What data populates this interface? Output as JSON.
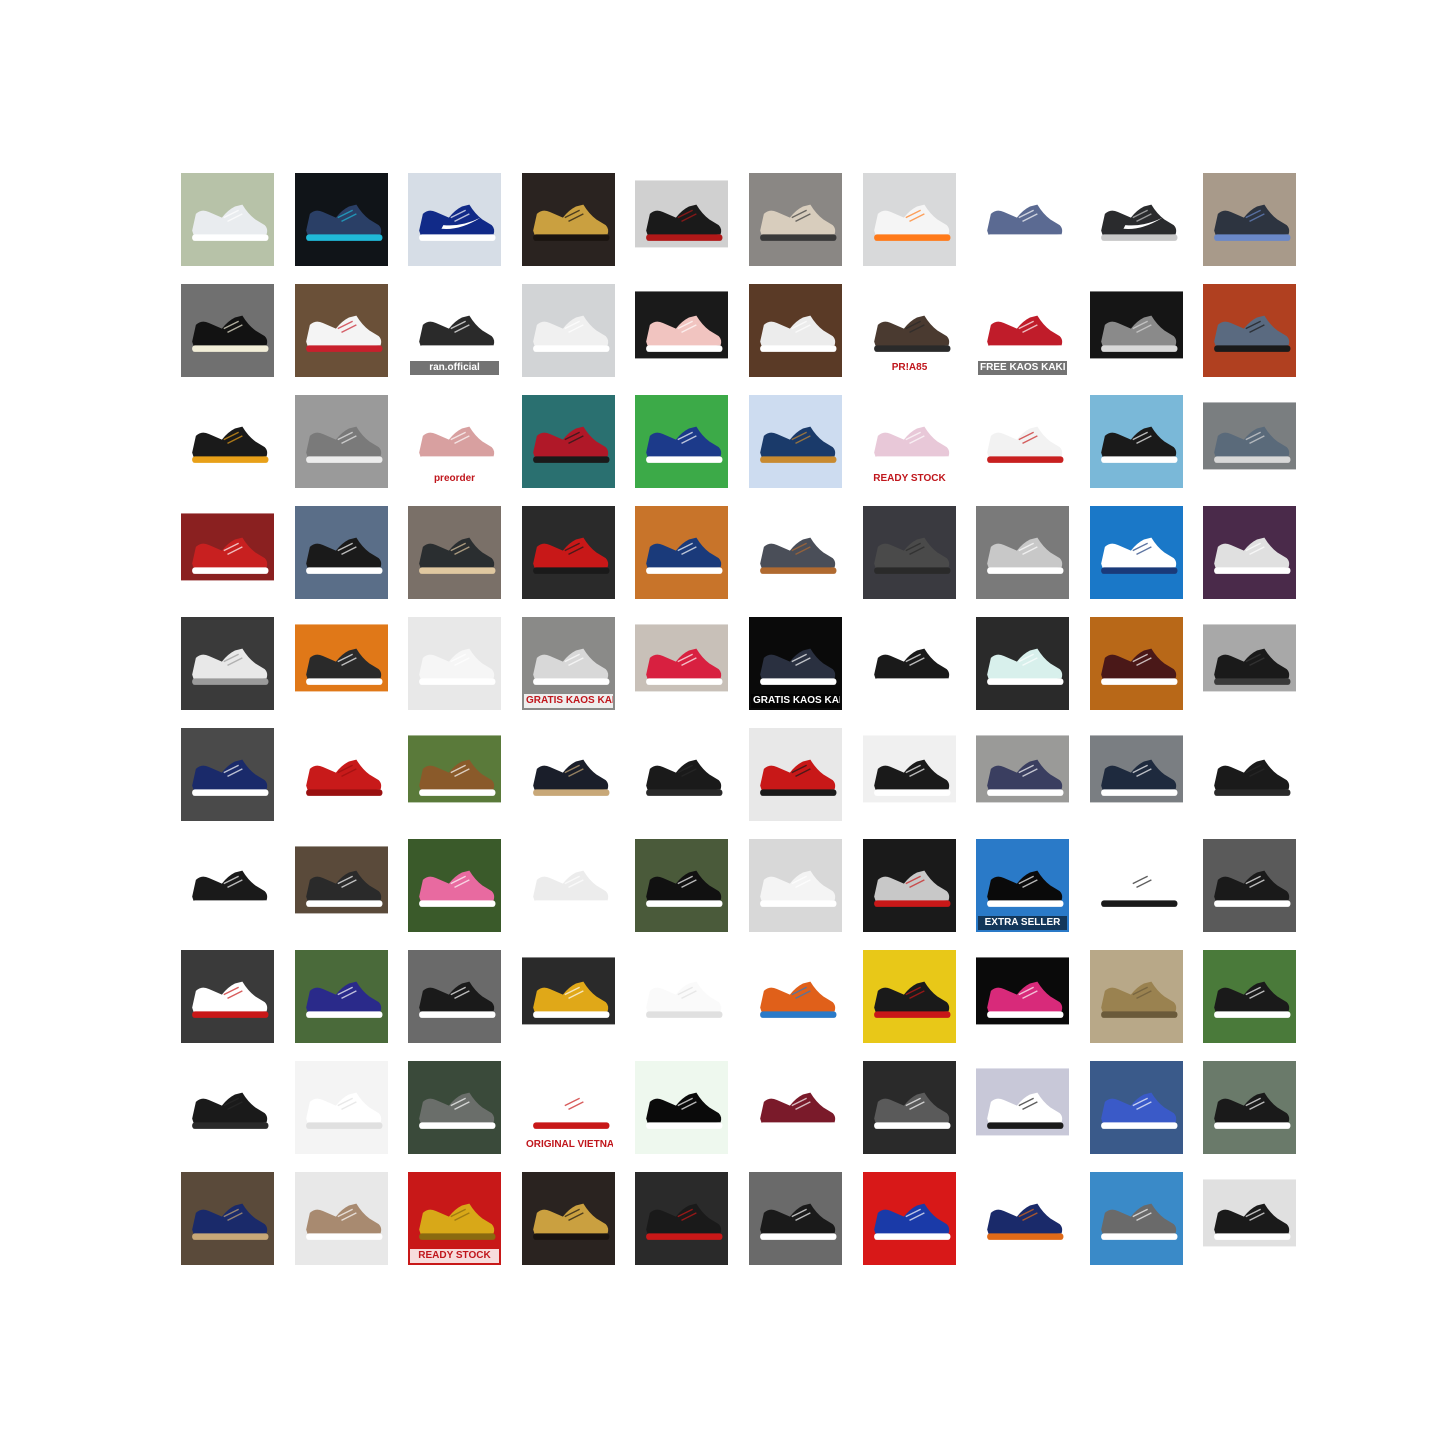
{
  "grid": {
    "rows": 10,
    "cols": 10,
    "subject": "sneakers"
  },
  "tiles": [
    {
      "bg": "#b7c2a8",
      "shoe": "#e9ecef",
      "sole": "#ffffff"
    },
    {
      "bg": "#101418",
      "shoe": "#2a3f66",
      "sole": "#20b9d8"
    },
    {
      "bg": "#d6dde6",
      "shoe": "#112a88",
      "sole": "#ffffff",
      "swoosh": true
    },
    {
      "bg": "#2a2320",
      "shoe": "#caa040",
      "sole": "#1a1410"
    },
    {
      "bg": "#ffffff",
      "shoe": "#1a1a1a",
      "sole": "#b01818",
      "inset": {
        "bg": "#d0d0d0"
      }
    },
    {
      "bg": "#8a8784",
      "shoe": "#d8cdbd",
      "sole": "#3a3a3a"
    },
    {
      "bg": "#d8d9da",
      "shoe": "#f5f5f5",
      "sole": "#ff7a1a"
    },
    {
      "bg": "#ffffff",
      "shoe": "#5b6a92",
      "sole": "#ffffff"
    },
    {
      "bg": "#ffffff",
      "shoe": "#2a2b2d",
      "sole": "#c8c8c8",
      "swoosh": true
    },
    {
      "bg": "#a89a8a",
      "shoe": "#2d3440",
      "sole": "#6a88c8"
    },
    {
      "bg": "#707070",
      "shoe": "#121212",
      "sole": "#f2eed8"
    },
    {
      "bg": "#6a5038",
      "shoe": "#f4f4f4",
      "sole": "#c8202c"
    },
    {
      "bg": "#ffffff",
      "shoe": "#2a2a2a",
      "sole": "#ffffff",
      "caption": "ran.official",
      "capStyle": "dark"
    },
    {
      "bg": "#d2d4d6",
      "shoe": "#f0f0f0",
      "sole": "#ffffff"
    },
    {
      "bg": "#ffffff",
      "shoe": "#f1c4c0",
      "sole": "#ffffff",
      "inset": {
        "bg": "#1a1a1a"
      }
    },
    {
      "bg": "#5a3a26",
      "shoe": "#ececec",
      "sole": "#ffffff"
    },
    {
      "bg": "#ffffff",
      "shoe": "#4a3a30",
      "sole": "#2a2a2a",
      "caption": "PR!A85",
      "capStyle": "light"
    },
    {
      "bg": "#ffffff",
      "shoe": "#c01c2a",
      "sole": "#ffffff",
      "caption": "FREE KAOS KAKI",
      "capStyle": "dark"
    },
    {
      "bg": "#151515",
      "shoe": "#8a8a8a",
      "sole": "#d8d8d8",
      "inset": {
        "bg": "#151515"
      }
    },
    {
      "bg": "#b04020",
      "shoe": "#5a6a80",
      "sole": "#1a1a1a"
    },
    {
      "bg": "#ffffff",
      "shoe": "#1a1a1a",
      "sole": "#e8a018"
    },
    {
      "bg": "#9a9a9a",
      "shoe": "#7a7a7a",
      "sole": "#ececec"
    },
    {
      "bg": "#ffffff",
      "shoe": "#d8a0a0",
      "sole": "#ffffff",
      "caption": "preorder",
      "capStyle": "light"
    },
    {
      "bg": "#2a7070",
      "shoe": "#b01828",
      "sole": "#1a1a1a"
    },
    {
      "bg": "#3caa48",
      "shoe": "#1c3a8a",
      "sole": "#ffffff"
    },
    {
      "bg": "#cddcf0",
      "shoe": "#1a3a6a",
      "sole": "#c88a30"
    },
    {
      "bg": "#ffffff",
      "shoe": "#e8c8d8",
      "sole": "#ffffff",
      "caption": "READY STOCK",
      "capStyle": "light"
    },
    {
      "bg": "#ffffff",
      "shoe": "#f2f2f2",
      "sole": "#c82020"
    },
    {
      "bg": "#7ab8d8",
      "shoe": "#1a1a1a",
      "sole": "#ffffff"
    },
    {
      "bg": "#ffffff",
      "shoe": "#5a6a7a",
      "sole": "#d8d8d8",
      "inset": {
        "bg": "#7a7e80"
      }
    },
    {
      "bg": "#ffffff",
      "shoe": "#c82020",
      "sole": "#ffffff",
      "inset": {
        "bg": "#8a2020"
      }
    },
    {
      "bg": "#5a6e88",
      "shoe": "#1a1a1a",
      "sole": "#ffffff"
    },
    {
      "bg": "#7a7068",
      "shoe": "#2a2e30",
      "sole": "#e0c8a0"
    },
    {
      "bg": "#2a2a2a",
      "shoe": "#c81818",
      "sole": "#1a1a1a"
    },
    {
      "bg": "#c8742a",
      "shoe": "#1a3a7a",
      "sole": "#ffffff"
    },
    {
      "bg": "#ffffff",
      "shoe": "#4a4e58",
      "sole": "#b06a30"
    },
    {
      "bg": "#3a3a40",
      "shoe": "#4a4a4a",
      "sole": "#2a2a2a"
    },
    {
      "bg": "#7a7a7a",
      "shoe": "#c8c8c8",
      "sole": "#ffffff"
    },
    {
      "bg": "#1a78c8",
      "shoe": "#ffffff",
      "sole": "#1a3a7a"
    },
    {
      "bg": "#4a2a4a",
      "shoe": "#e0e0e0",
      "sole": "#ffffff"
    },
    {
      "bg": "#3a3a3a",
      "shoe": "#e8e8e8",
      "sole": "#9a9a9a"
    },
    {
      "bg": "#ffffff",
      "shoe": "#2a2a2a",
      "sole": "#ffffff",
      "inset": {
        "bg": "#e07818"
      }
    },
    {
      "bg": "#e8e8e8",
      "shoe": "#f6f6f6",
      "sole": "#ffffff"
    },
    {
      "bg": "#8a8a88",
      "shoe": "#d8d8d8",
      "sole": "#ffffff",
      "caption": "GRATIS KAOS KAKI",
      "capStyle": "light"
    },
    {
      "bg": "#ffffff",
      "shoe": "#d82040",
      "sole": "#ffffff",
      "inset": {
        "bg": "#c8c0b8"
      }
    },
    {
      "bg": "#0a0a0a",
      "shoe": "#2a3040",
      "sole": "#ffffff",
      "caption": "GRATIS KAOS KAKI",
      "capStyle": "dark"
    },
    {
      "bg": "#ffffff",
      "shoe": "#1a1a1a",
      "sole": "#ffffff"
    },
    {
      "bg": "#2a2a2a",
      "shoe": "#d8f0ec",
      "sole": "#ffffff"
    },
    {
      "bg": "#b86818",
      "shoe": "#4a1818",
      "sole": "#ffffff"
    },
    {
      "bg": "#c8c8c8",
      "shoe": "#1a1a1a",
      "sole": "#3a3a3a",
      "inset": {
        "bg": "#a8a8a8"
      }
    },
    {
      "bg": "#4a4a4a",
      "shoe": "#1a2a6a",
      "sole": "#ffffff"
    },
    {
      "bg": "#ffffff",
      "shoe": "#c81a1a",
      "sole": "#9a1010"
    },
    {
      "bg": "#ffffff",
      "shoe": "#8a5a2a",
      "sole": "#ffffff",
      "inset": {
        "bg": "#5a7a3a"
      }
    },
    {
      "bg": "#ffffff",
      "shoe": "#1a1e2a",
      "sole": "#c8a878"
    },
    {
      "bg": "#ffffff",
      "shoe": "#1a1a1a",
      "sole": "#2a2a2a"
    },
    {
      "bg": "#e8e8e8",
      "shoe": "#c81818",
      "sole": "#1a1a1a"
    },
    {
      "bg": "#ffffff",
      "shoe": "#1a1a1a",
      "sole": "#ffffff",
      "inset": {
        "bg": "#f0f0f0"
      }
    },
    {
      "bg": "#ffffff",
      "shoe": "#3a3e60",
      "sole": "#ffffff",
      "inset": {
        "bg": "#9a9a98"
      }
    },
    {
      "bg": "#ffffff",
      "shoe": "#1e2a3e",
      "sole": "#ffffff",
      "inset": {
        "bg": "#7a7e82"
      }
    },
    {
      "bg": "#ffffff",
      "shoe": "#1a1a1a",
      "sole": "#2a2a2a"
    },
    {
      "bg": "#ffffff",
      "shoe": "#1a1a1a",
      "sole": "#ffffff"
    },
    {
      "bg": "#ffffff",
      "shoe": "#2a2a2a",
      "sole": "#ffffff",
      "inset": {
        "bg": "#5a4a3a"
      }
    },
    {
      "bg": "#3a5a2a",
      "shoe": "#e86aa0",
      "sole": "#ffffff"
    },
    {
      "bg": "#ffffff",
      "shoe": "#ececec",
      "sole": "#ffffff"
    },
    {
      "bg": "#4a5a3a",
      "shoe": "#111111",
      "sole": "#ffffff"
    },
    {
      "bg": "#d8d8d8",
      "shoe": "#f4f4f4",
      "sole": "#ffffff"
    },
    {
      "bg": "#1a1a1a",
      "shoe": "#c8c8c8",
      "sole": "#c81818"
    },
    {
      "bg": "#2a7ac8",
      "shoe": "#0a0a0a",
      "sole": "#ffffff",
      "caption": "EXTRA SELLER",
      "capStyle": "dark"
    },
    {
      "bg": "#ffffff",
      "shoe": "#ffffff",
      "sole": "#1a1a1a"
    },
    {
      "bg": "#5a5a5a",
      "shoe": "#1a1a1a",
      "sole": "#ffffff"
    },
    {
      "bg": "#3a3a3a",
      "shoe": "#ffffff",
      "sole": "#c81818"
    },
    {
      "bg": "#4a6a3a",
      "shoe": "#2a2a8a",
      "sole": "#ffffff"
    },
    {
      "bg": "#6a6a6a",
      "shoe": "#1a1a1a",
      "sole": "#ffffff"
    },
    {
      "bg": "#ffffff",
      "shoe": "#e0a818",
      "sole": "#ffffff",
      "inset": {
        "bg": "#2a2a2a"
      }
    },
    {
      "bg": "#ffffff",
      "shoe": "#fafafa",
      "sole": "#e0e0e0"
    },
    {
      "bg": "#ffffff",
      "shoe": "#e0601a",
      "sole": "#2a7ac8"
    },
    {
      "bg": "#e8c818",
      "shoe": "#1a1a1a",
      "sole": "#c81818"
    },
    {
      "bg": "#ffffff",
      "shoe": "#d82a7a",
      "sole": "#ffffff",
      "inset": {
        "bg": "#0a0a0a"
      }
    },
    {
      "bg": "#b8a888",
      "shoe": "#9a8250",
      "sole": "#6a5a3a"
    },
    {
      "bg": "#4a7a3a",
      "shoe": "#1a1a1a",
      "sole": "#ffffff"
    },
    {
      "bg": "#ffffff",
      "shoe": "#1a1a1a",
      "sole": "#2a2a2a"
    },
    {
      "bg": "#f4f4f4",
      "shoe": "#ffffff",
      "sole": "#e0e0e0"
    },
    {
      "bg": "#3a4a3a",
      "shoe": "#6a6e6a",
      "sole": "#ffffff"
    },
    {
      "bg": "#ffffff",
      "shoe": "#ffffff",
      "sole": "#c81818",
      "caption": "ORIGINAL VIETNAM",
      "capStyle": "light"
    },
    {
      "bg": "#eef8ee",
      "shoe": "#0a0a0a",
      "sole": "#ffffff"
    },
    {
      "bg": "#ffffff",
      "shoe": "#7a1a2a",
      "sole": "#ffffff"
    },
    {
      "bg": "#2a2a2a",
      "shoe": "#5a5a5a",
      "sole": "#ffffff"
    },
    {
      "bg": "#ffffff",
      "shoe": "#ffffff",
      "sole": "#1a1a1a",
      "inset": {
        "bg": "#c8c8d8"
      }
    },
    {
      "bg": "#3a5a8a",
      "shoe": "#3a5ac8",
      "sole": "#ffffff"
    },
    {
      "bg": "#6a7a6a",
      "shoe": "#1a1a1a",
      "sole": "#ffffff"
    },
    {
      "bg": "#5a4a3a",
      "shoe": "#1a2a6a",
      "sole": "#c8a878"
    },
    {
      "bg": "#e8e8e8",
      "shoe": "#a88a70",
      "sole": "#ffffff"
    },
    {
      "bg": "#c81818",
      "shoe": "#d8a818",
      "sole": "#8a6a10",
      "caption": "READY STOCK",
      "capStyle": "light"
    },
    {
      "bg": "#2a2320",
      "shoe": "#caa040",
      "sole": "#1a1410"
    },
    {
      "bg": "#2a2a2a",
      "shoe": "#1a1a1a",
      "sole": "#c81818"
    },
    {
      "bg": "#6a6a6a",
      "shoe": "#1a1a1a",
      "sole": "#ffffff"
    },
    {
      "bg": "#d81818",
      "shoe": "#1a3aa8",
      "sole": "#ffffff"
    },
    {
      "bg": "#ffffff",
      "shoe": "#1a2a6a",
      "sole": "#e06a18"
    },
    {
      "bg": "#3a8ac8",
      "shoe": "#6a6a6a",
      "sole": "#ffffff"
    },
    {
      "bg": "#ffffff",
      "shoe": "#1a1a1a",
      "sole": "#ffffff",
      "inset": {
        "bg": "#e0e0e0"
      }
    }
  ]
}
